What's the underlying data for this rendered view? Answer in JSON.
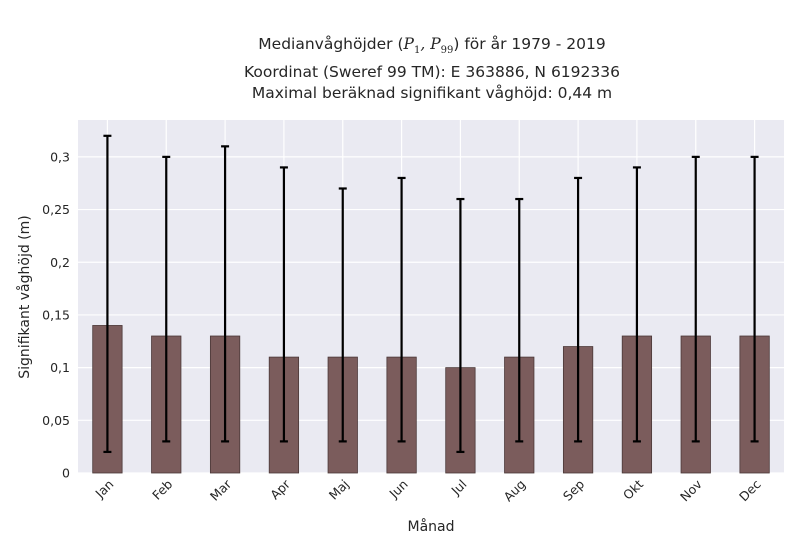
{
  "chart_data": {
    "type": "bar",
    "title_lines": [
      {
        "before": "Medianvåghöjder (",
        "p1_base": "P",
        "p1_sub": "1",
        "sep": ", ",
        "p2_base": "P",
        "p2_sub": "99",
        "after": ") för år 1979 - 2019"
      },
      {
        "text": "Koordinat (Sweref 99 TM): E 363886, N 6192336"
      },
      {
        "text": "Maximal beräknad signifikant våghöjd: 0,44 m"
      }
    ],
    "xlabel": "Månad",
    "ylabel": "Signifikant våghöjd (m)",
    "categories": [
      "Jan",
      "Feb",
      "Mar",
      "Apr",
      "Maj",
      "Jun",
      "Jul",
      "Aug",
      "Sep",
      "Okt",
      "Nov",
      "Dec"
    ],
    "values": [
      0.14,
      0.13,
      0.13,
      0.11,
      0.11,
      0.11,
      0.1,
      0.11,
      0.12,
      0.13,
      0.13,
      0.13
    ],
    "error_low": [
      0.02,
      0.03,
      0.03,
      0.03,
      0.03,
      0.03,
      0.02,
      0.03,
      0.03,
      0.03,
      0.03,
      0.03
    ],
    "error_high": [
      0.32,
      0.3,
      0.31,
      0.29,
      0.27,
      0.28,
      0.26,
      0.26,
      0.28,
      0.29,
      0.3,
      0.3
    ],
    "ylim": [
      0,
      0.335
    ],
    "yticks": [
      0,
      0.05,
      0.1,
      0.15,
      0.2,
      0.25,
      0.3
    ],
    "ytick_labels": [
      "0",
      "0,05",
      "0,1",
      "0,15",
      "0,2",
      "0,25",
      "0,3"
    ],
    "grid": true,
    "colors": {
      "bar": "#7b5c5c",
      "bar_edge": "#4a3737",
      "errorbar": "#000000",
      "plot_background": "#eaeaf2",
      "grid": "#ffffff"
    }
  }
}
